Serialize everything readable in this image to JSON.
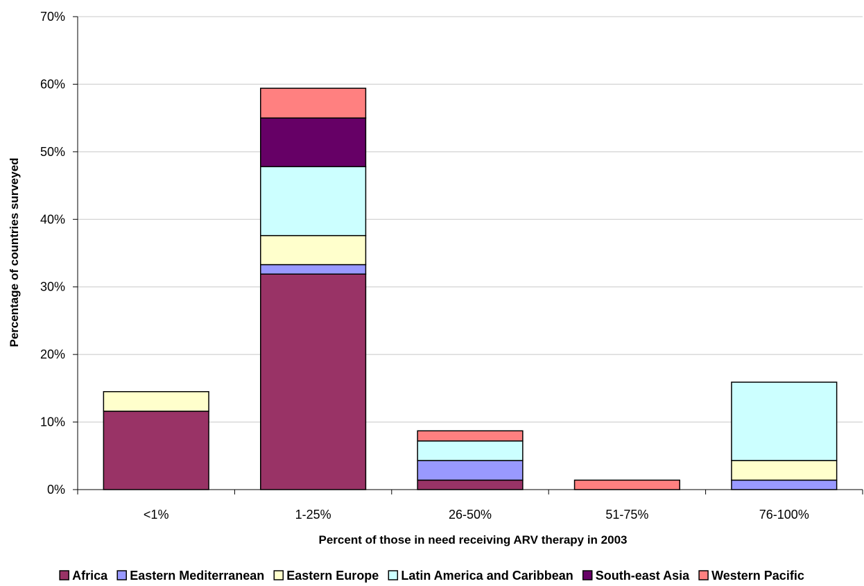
{
  "chart_data": {
    "type": "bar",
    "stacked": true,
    "title": "",
    "xlabel": "Percent of those in need receiving ARV therapy in 2003",
    "ylabel": "Percentage of countries surveyed",
    "categories": [
      "<1%",
      "1-25%",
      "26-50%",
      "51-75%",
      "76-100%"
    ],
    "ylim": [
      0,
      70
    ],
    "yticks": [
      0,
      10,
      20,
      30,
      40,
      50,
      60,
      70
    ],
    "ytick_labels": [
      "0%",
      "10%",
      "20%",
      "30%",
      "40%",
      "50%",
      "60%",
      "70%"
    ],
    "grid": true,
    "legend_position": "bottom",
    "series": [
      {
        "name": "Africa",
        "color": "#993366",
        "values": [
          11.6,
          31.9,
          1.4,
          0,
          0
        ]
      },
      {
        "name": "Eastern Mediterranean",
        "color": "#9999FF",
        "values": [
          0,
          1.4,
          2.9,
          0,
          1.4
        ]
      },
      {
        "name": "Eastern Europe",
        "color": "#FFFFCC",
        "values": [
          2.9,
          4.3,
          0,
          0,
          2.9
        ]
      },
      {
        "name": "Latin America and Caribbean",
        "color": "#CCFFFF",
        "values": [
          0,
          10.2,
          2.9,
          0,
          11.6
        ]
      },
      {
        "name": "South-east Asia",
        "color": "#660066",
        "values": [
          0,
          7.2,
          0,
          0,
          0
        ]
      },
      {
        "name": "Western Pacific",
        "color": "#FF8080",
        "values": [
          0,
          4.4,
          1.5,
          1.4,
          0
        ]
      }
    ]
  }
}
